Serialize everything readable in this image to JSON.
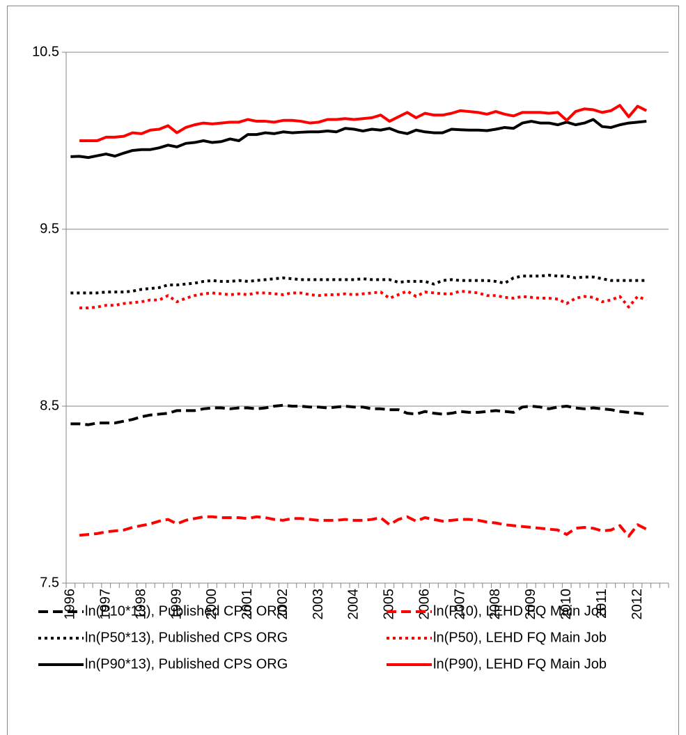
{
  "chart_data": {
    "type": "line",
    "categories": [
      "1996",
      null,
      null,
      null,
      "1997",
      null,
      null,
      null,
      "1998",
      null,
      null,
      null,
      "1999",
      null,
      null,
      null,
      "2000",
      null,
      null,
      null,
      "2001",
      null,
      null,
      null,
      "2002",
      null,
      null,
      null,
      "2003",
      null,
      null,
      null,
      "2004",
      null,
      null,
      null,
      "2005",
      null,
      null,
      null,
      "2006",
      null,
      null,
      null,
      "2007",
      null,
      null,
      null,
      "2008",
      null,
      null,
      null,
      "2009",
      null,
      null,
      null,
      "2010",
      null,
      null,
      null,
      "2011",
      null,
      null,
      null,
      "2012",
      null,
      null,
      null
    ],
    "ylim": [
      7.5,
      10.5
    ],
    "yticks": [
      7.5,
      8.5,
      9.5,
      10.5
    ],
    "grid": true,
    "series": [
      {
        "name": "ln(P10*13), Published CPS ORG",
        "color": "#000000",
        "dash": "dashed",
        "values": [
          8.4,
          8.4,
          8.395,
          8.405,
          8.405,
          8.405,
          8.415,
          8.425,
          8.44,
          8.45,
          8.455,
          8.46,
          8.475,
          8.475,
          8.475,
          8.485,
          8.49,
          8.49,
          8.485,
          8.49,
          8.49,
          8.485,
          8.49,
          8.5,
          8.505,
          8.5,
          8.5,
          8.495,
          8.495,
          8.49,
          8.495,
          8.5,
          8.495,
          8.495,
          8.485,
          8.485,
          8.48,
          8.48,
          8.46,
          8.455,
          8.47,
          8.46,
          8.455,
          8.46,
          8.47,
          8.465,
          8.465,
          8.47,
          8.475,
          8.47,
          8.465,
          8.495,
          8.5,
          8.495,
          8.485,
          8.495,
          8.5,
          8.49,
          8.485,
          8.49,
          8.485,
          8.48,
          8.47,
          8.465,
          8.46,
          8.455,
          null,
          null
        ]
      },
      {
        "name": "ln(P10), LEHD FQ Main Job",
        "color": "#ff0000",
        "dash": "dashed",
        "values": [
          null,
          7.77,
          7.775,
          7.78,
          7.79,
          7.795,
          7.8,
          7.815,
          7.825,
          7.835,
          7.85,
          7.86,
          7.835,
          7.855,
          7.865,
          7.875,
          7.875,
          7.87,
          7.87,
          7.87,
          7.865,
          7.875,
          7.87,
          7.86,
          7.855,
          7.865,
          7.865,
          7.86,
          7.855,
          7.855,
          7.855,
          7.86,
          7.855,
          7.855,
          7.86,
          7.87,
          7.83,
          7.86,
          7.875,
          7.85,
          7.87,
          7.86,
          7.85,
          7.855,
          7.86,
          7.86,
          7.855,
          7.845,
          7.84,
          7.83,
          7.825,
          7.82,
          7.815,
          7.81,
          7.805,
          7.8,
          7.775,
          7.81,
          7.815,
          7.81,
          7.795,
          7.8,
          7.825,
          7.765,
          7.83,
          7.805,
          null,
          null
        ]
      },
      {
        "name": "ln(P50*13), Published CPS ORG",
        "color": "#000000",
        "dash": "dotted",
        "values": [
          9.14,
          9.14,
          9.14,
          9.14,
          9.145,
          9.145,
          9.145,
          9.15,
          9.16,
          9.165,
          9.17,
          9.185,
          9.185,
          9.19,
          9.195,
          9.205,
          9.21,
          9.205,
          9.205,
          9.21,
          9.205,
          9.21,
          9.215,
          9.22,
          9.225,
          9.22,
          9.215,
          9.215,
          9.215,
          9.215,
          9.215,
          9.215,
          9.215,
          9.22,
          9.215,
          9.215,
          9.215,
          9.2,
          9.205,
          9.205,
          9.205,
          9.19,
          9.21,
          9.215,
          9.21,
          9.21,
          9.21,
          9.21,
          9.205,
          9.195,
          9.225,
          9.235,
          9.235,
          9.235,
          9.24,
          9.235,
          9.235,
          9.225,
          9.23,
          9.23,
          9.22,
          9.21,
          9.21,
          9.21,
          9.21,
          9.21,
          null,
          null
        ]
      },
      {
        "name": "ln(P50), LEHD FQ Main Job",
        "color": "#ff0000",
        "dash": "dotted",
        "values": [
          null,
          9.055,
          9.055,
          9.06,
          9.07,
          9.07,
          9.08,
          9.085,
          9.09,
          9.1,
          9.1,
          9.125,
          9.09,
          9.11,
          9.125,
          9.135,
          9.14,
          9.135,
          9.13,
          9.135,
          9.13,
          9.14,
          9.14,
          9.135,
          9.13,
          9.14,
          9.14,
          9.13,
          9.125,
          9.13,
          9.13,
          9.135,
          9.13,
          9.135,
          9.14,
          9.145,
          9.11,
          9.13,
          9.15,
          9.12,
          9.145,
          9.14,
          9.135,
          9.135,
          9.15,
          9.145,
          9.14,
          9.125,
          9.125,
          9.115,
          9.11,
          9.12,
          9.115,
          9.11,
          9.11,
          9.105,
          9.08,
          9.11,
          9.12,
          9.115,
          9.09,
          9.1,
          9.12,
          9.06,
          9.12,
          9.1,
          null,
          null
        ]
      },
      {
        "name": "ln(P90*13), Published CPS ORG",
        "color": "#000000",
        "dash": "solid",
        "values": [
          9.91,
          9.912,
          9.905,
          9.915,
          9.925,
          9.913,
          9.93,
          9.945,
          9.95,
          9.95,
          9.96,
          9.975,
          9.965,
          9.985,
          9.99,
          10.0,
          9.99,
          9.995,
          10.01,
          10.0,
          10.035,
          10.035,
          10.045,
          10.04,
          10.05,
          10.045,
          10.048,
          10.05,
          10.05,
          10.055,
          10.05,
          10.07,
          10.065,
          10.055,
          10.065,
          10.06,
          10.07,
          10.05,
          10.04,
          10.06,
          10.05,
          10.045,
          10.045,
          10.065,
          10.062,
          10.06,
          10.06,
          10.057,
          10.065,
          10.075,
          10.07,
          10.1,
          10.11,
          10.1,
          10.1,
          10.09,
          10.105,
          10.09,
          10.1,
          10.12,
          10.08,
          10.075,
          10.09,
          10.1,
          10.105,
          10.11,
          null,
          null
        ]
      },
      {
        "name": "ln(P90), LEHD FQ Main Job",
        "color": "#ff0000",
        "dash": "solid",
        "values": [
          null,
          10.0,
          10.0,
          10.0,
          10.02,
          10.02,
          10.025,
          10.045,
          10.04,
          10.06,
          10.065,
          10.085,
          10.045,
          10.075,
          10.09,
          10.1,
          10.095,
          10.1,
          10.105,
          10.105,
          10.12,
          10.11,
          10.11,
          10.105,
          10.115,
          10.115,
          10.11,
          10.1,
          10.105,
          10.12,
          10.12,
          10.125,
          10.12,
          10.125,
          10.13,
          10.145,
          10.11,
          10.135,
          10.16,
          10.13,
          10.155,
          10.145,
          10.145,
          10.155,
          10.17,
          10.165,
          10.16,
          10.15,
          10.165,
          10.15,
          10.14,
          10.16,
          10.16,
          10.16,
          10.155,
          10.16,
          10.115,
          10.165,
          10.18,
          10.175,
          10.16,
          10.17,
          10.2,
          10.135,
          10.195,
          10.17,
          null,
          null
        ]
      }
    ]
  }
}
